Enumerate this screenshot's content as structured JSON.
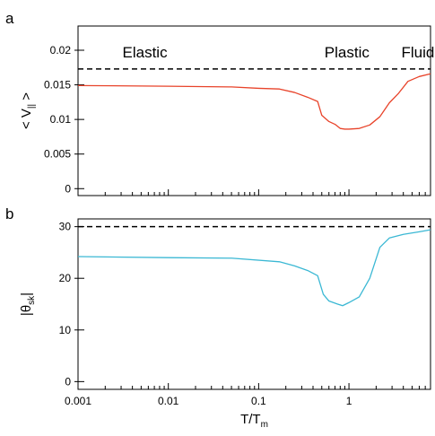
{
  "chart_data": [
    {
      "panel_letter": "a",
      "type": "line",
      "xscale": "log",
      "xlim": [
        0.001,
        8
      ],
      "ylim": [
        -0.001,
        0.0235
      ],
      "ylabel_main": "< V",
      "ylabel_sub": "||",
      "ylabel_end": " >",
      "yticks": [
        0,
        0.005,
        0.01,
        0.015,
        0.02
      ],
      "ytick_labels": [
        "0",
        "0.005",
        "0.01",
        "0.015",
        "0.02"
      ],
      "region_labels": [
        {
          "text": "Elastic",
          "x": 0.0055
        },
        {
          "text": "Plastic",
          "x": 0.95
        },
        {
          "text": "Fluid",
          "x": 5.8
        }
      ],
      "reference_line": {
        "y": 0.0173,
        "style": "dashed",
        "color": "#000000"
      },
      "series": [
        {
          "color": "#e8432a",
          "x": [
            0.001,
            0.01,
            0.05,
            0.1,
            0.17,
            0.25,
            0.35,
            0.45,
            0.5,
            0.6,
            0.7,
            0.8,
            0.9,
            1.0,
            1.3,
            1.7,
            2.2,
            2.8,
            3.5,
            4.5,
            6.0,
            8.0
          ],
          "y": [
            0.0149,
            0.0148,
            0.0147,
            0.0145,
            0.0144,
            0.0139,
            0.0132,
            0.0126,
            0.0106,
            0.0097,
            0.0093,
            0.0087,
            0.0086,
            0.0086,
            0.0087,
            0.0092,
            0.0104,
            0.0124,
            0.0137,
            0.0155,
            0.0162,
            0.0166
          ]
        }
      ]
    },
    {
      "panel_letter": "b",
      "type": "line",
      "xscale": "log",
      "xlim": [
        0.001,
        8
      ],
      "ylim": [
        -1.5,
        31.5
      ],
      "ylabel_main": "|θ",
      "ylabel_sub": "sk",
      "ylabel_end": "|",
      "yticks": [
        0,
        10,
        20,
        30
      ],
      "ytick_labels": [
        "0",
        "10",
        "20",
        "30"
      ],
      "xticks": [
        0.001,
        0.01,
        0.1,
        1
      ],
      "xtick_labels": [
        "0.001",
        "0.01",
        "0.1",
        "1"
      ],
      "xlabel_main": "T/T",
      "xlabel_sub": "m",
      "reference_line": {
        "y": 30,
        "style": "dashed",
        "color": "#000000"
      },
      "series": [
        {
          "color": "#3bb8d4",
          "x": [
            0.001,
            0.01,
            0.05,
            0.17,
            0.25,
            0.35,
            0.45,
            0.52,
            0.6,
            0.75,
            0.85,
            1.0,
            1.3,
            1.7,
            2.2,
            2.8,
            4.0,
            6.0,
            8.0
          ],
          "y": [
            24.2,
            24.0,
            23.9,
            23.2,
            22.4,
            21.5,
            20.5,
            16.9,
            15.6,
            15.0,
            14.7,
            15.3,
            16.4,
            20.0,
            26.0,
            27.8,
            28.5,
            29.0,
            29.4
          ]
        }
      ]
    }
  ]
}
